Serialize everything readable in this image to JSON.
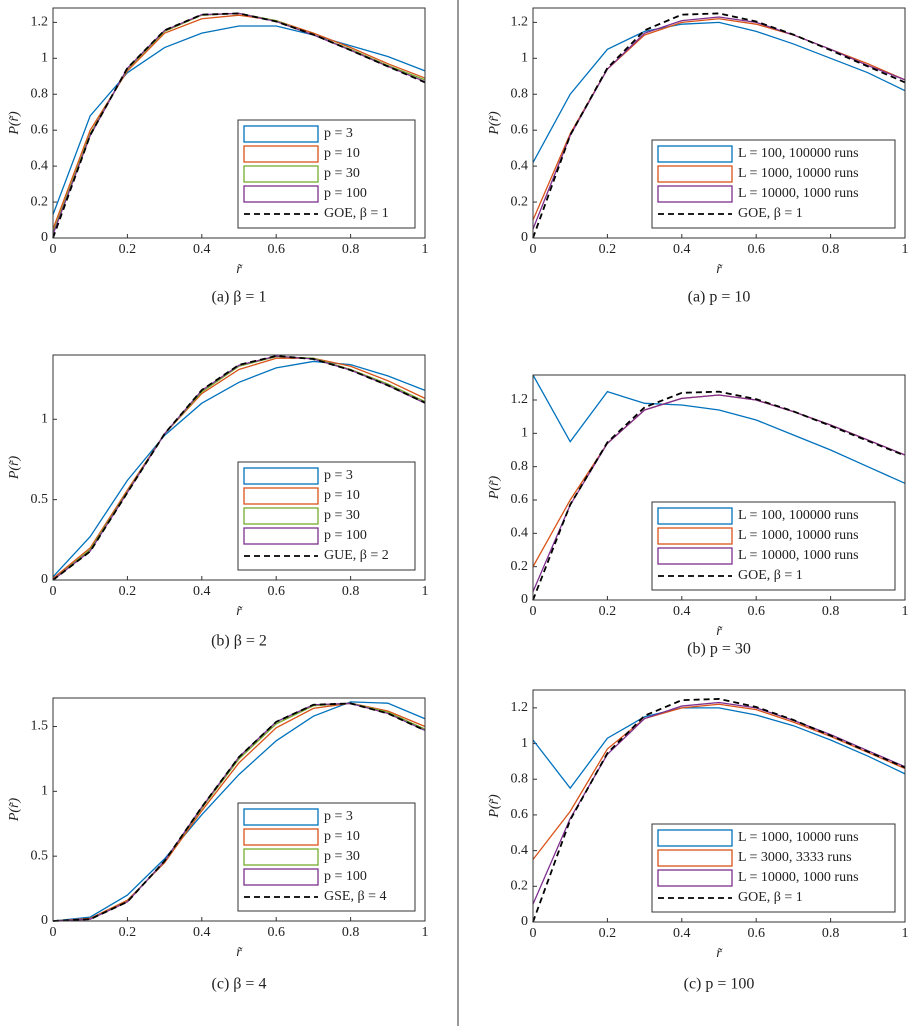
{
  "chart_data": [
    {
      "type": "line",
      "caption": "(a) β = 1",
      "xlabel": "r̃",
      "ylabel": "P(r̃)",
      "legend": "lower right",
      "x": [
        0,
        0.1,
        0.2,
        0.3,
        0.4,
        0.5,
        0.6,
        0.7,
        0.8,
        0.9,
        1
      ],
      "xlim": [
        0,
        1
      ],
      "xticks": [
        0,
        0.2,
        0.4,
        0.6,
        0.8,
        1
      ],
      "ylim": [
        0,
        1.28
      ],
      "yticks": [
        0,
        0.2,
        0.4,
        0.6,
        0.8,
        1,
        1.2
      ],
      "series": [
        {
          "name": "p = 3",
          "color": "#0072bd",
          "values": [
            0.13,
            0.68,
            0.92,
            1.06,
            1.14,
            1.18,
            1.18,
            1.13,
            1.07,
            1.01,
            0.93
          ]
        },
        {
          "name": "p = 10",
          "color": "#d95319",
          "values": [
            0.05,
            0.6,
            0.93,
            1.14,
            1.22,
            1.24,
            1.21,
            1.14,
            1.06,
            0.97,
            0.89
          ]
        },
        {
          "name": "p = 30",
          "color": "#77ac30",
          "values": [
            0.03,
            0.58,
            0.94,
            1.15,
            1.24,
            1.25,
            1.21,
            1.13,
            1.05,
            0.96,
            0.88
          ]
        },
        {
          "name": "p = 100",
          "color": "#7e2f8e",
          "values": [
            0.02,
            0.57,
            0.945,
            1.155,
            1.243,
            1.25,
            1.205,
            1.13,
            1.045,
            0.955,
            0.87
          ]
        },
        {
          "name": "GOE, β = 1",
          "color": "#000000",
          "linestyle": "dashed",
          "values": [
            0,
            0.572,
            0.946,
            1.156,
            1.243,
            1.25,
            1.205,
            1.132,
            1.045,
            0.955,
            0.866
          ]
        }
      ]
    },
    {
      "type": "line",
      "caption": "(b) β = 2",
      "xlabel": "r̃",
      "ylabel": "P(r̃)",
      "legend": "lower right",
      "x": [
        0,
        0.1,
        0.2,
        0.3,
        0.4,
        0.5,
        0.6,
        0.7,
        0.8,
        0.9,
        1
      ],
      "xlim": [
        0,
        1
      ],
      "xticks": [
        0,
        0.2,
        0.4,
        0.6,
        0.8,
        1
      ],
      "ylim": [
        0,
        1.4
      ],
      "yticks": [
        0,
        0.5,
        1
      ],
      "series": [
        {
          "name": "p = 3",
          "color": "#0072bd",
          "values": [
            0.02,
            0.27,
            0.62,
            0.9,
            1.1,
            1.23,
            1.32,
            1.36,
            1.34,
            1.27,
            1.18
          ]
        },
        {
          "name": "p = 10",
          "color": "#d95319",
          "values": [
            0.01,
            0.2,
            0.56,
            0.91,
            1.16,
            1.31,
            1.38,
            1.38,
            1.33,
            1.24,
            1.13
          ]
        },
        {
          "name": "p = 30",
          "color": "#77ac30",
          "values": [
            0,
            0.19,
            0.55,
            0.91,
            1.17,
            1.33,
            1.39,
            1.38,
            1.31,
            1.22,
            1.11
          ]
        },
        {
          "name": "p = 100",
          "color": "#7e2f8e",
          "values": [
            0,
            0.18,
            0.545,
            0.91,
            1.18,
            1.336,
            1.393,
            1.375,
            1.306,
            1.211,
            1.1
          ]
        },
        {
          "name": "GUE, β = 2",
          "color": "#000000",
          "linestyle": "dashed",
          "values": [
            0,
            0.178,
            0.544,
            0.91,
            1.182,
            1.339,
            1.394,
            1.375,
            1.306,
            1.211,
            1.103
          ]
        }
      ]
    },
    {
      "type": "line",
      "caption": "(c) β = 4",
      "xlabel": "r̃",
      "ylabel": "P(r̃)",
      "legend": "lower right",
      "x": [
        0,
        0.1,
        0.2,
        0.3,
        0.4,
        0.5,
        0.6,
        0.7,
        0.8,
        0.9,
        1
      ],
      "xlim": [
        0,
        1
      ],
      "xticks": [
        0,
        0.2,
        0.4,
        0.6,
        0.8,
        1
      ],
      "ylim": [
        0,
        1.72
      ],
      "yticks": [
        0,
        0.5,
        1,
        1.5
      ],
      "series": [
        {
          "name": "p = 3",
          "color": "#0072bd",
          "values": [
            0,
            0.03,
            0.2,
            0.48,
            0.82,
            1.13,
            1.39,
            1.58,
            1.69,
            1.68,
            1.56
          ]
        },
        {
          "name": "p = 10",
          "color": "#d95319",
          "values": [
            0,
            0.02,
            0.16,
            0.45,
            0.85,
            1.22,
            1.49,
            1.64,
            1.68,
            1.62,
            1.5
          ]
        },
        {
          "name": "p = 30",
          "color": "#77ac30",
          "values": [
            0,
            0.015,
            0.15,
            0.46,
            0.87,
            1.25,
            1.52,
            1.66,
            1.68,
            1.61,
            1.48
          ]
        },
        {
          "name": "p = 100",
          "color": "#7e2f8e",
          "values": [
            0,
            0.014,
            0.148,
            0.463,
            0.879,
            1.265,
            1.536,
            1.668,
            1.678,
            1.601,
            1.47
          ]
        },
        {
          "name": "GSE, β = 4",
          "color": "#000000",
          "linestyle": "dashed",
          "values": [
            0,
            0.014,
            0.148,
            0.463,
            0.879,
            1.265,
            1.536,
            1.668,
            1.678,
            1.601,
            1.47
          ]
        }
      ]
    },
    {
      "type": "line",
      "caption": "(a) p = 10",
      "xlabel": "r̃",
      "ylabel": "P(r̃)",
      "legend": "lower right",
      "x": [
        0,
        0.1,
        0.2,
        0.3,
        0.4,
        0.5,
        0.6,
        0.7,
        0.8,
        0.9,
        1
      ],
      "xlim": [
        0,
        1
      ],
      "xticks": [
        0,
        0.2,
        0.4,
        0.6,
        0.8,
        1
      ],
      "ylim": [
        0,
        1.28
      ],
      "yticks": [
        0,
        0.2,
        0.4,
        0.6,
        0.8,
        1,
        1.2
      ],
      "series": [
        {
          "name": "L = 100, 100000 runs",
          "color": "#0072bd",
          "values": [
            0.42,
            0.8,
            1.05,
            1.15,
            1.19,
            1.2,
            1.15,
            1.08,
            1,
            0.92,
            0.82
          ]
        },
        {
          "name": "L = 1000, 10000 runs",
          "color": "#d95319",
          "values": [
            0.1,
            0.58,
            0.94,
            1.13,
            1.2,
            1.22,
            1.19,
            1.13,
            1.05,
            0.97,
            0.88
          ]
        },
        {
          "name": "L = 10000, 1000 runs",
          "color": "#7e2f8e",
          "values": [
            0.05,
            0.57,
            0.94,
            1.14,
            1.21,
            1.23,
            1.2,
            1.13,
            1.05,
            0.96,
            0.88
          ]
        },
        {
          "name": "GOE, β = 1",
          "color": "#000000",
          "linestyle": "dashed",
          "values": [
            0,
            0.572,
            0.946,
            1.156,
            1.243,
            1.25,
            1.205,
            1.132,
            1.045,
            0.955,
            0.866
          ]
        }
      ]
    },
    {
      "type": "line",
      "caption": "(b) p = 30",
      "xlabel": "r̃",
      "ylabel": "P(r̃)",
      "legend": "lower right",
      "x": [
        0,
        0.1,
        0.2,
        0.3,
        0.4,
        0.5,
        0.6,
        0.7,
        0.8,
        0.9,
        1
      ],
      "xlim": [
        0,
        1
      ],
      "xticks": [
        0,
        0.2,
        0.4,
        0.6,
        0.8,
        1
      ],
      "ylim": [
        0,
        1.35
      ],
      "yticks": [
        0,
        0.2,
        0.4,
        0.6,
        0.8,
        1,
        1.2
      ],
      "series": [
        {
          "name": "L = 100, 100000 runs",
          "color": "#0072bd",
          "values": [
            1.35,
            0.95,
            1.25,
            1.18,
            1.17,
            1.14,
            1.08,
            0.99,
            0.9,
            0.8,
            0.7
          ]
        },
        {
          "name": "L = 1000, 10000 runs",
          "color": "#d95319",
          "values": [
            0.2,
            0.6,
            0.94,
            1.14,
            1.21,
            1.23,
            1.2,
            1.13,
            1.05,
            0.96,
            0.87
          ]
        },
        {
          "name": "L = 10000, 1000 runs",
          "color": "#7e2f8e",
          "values": [
            0.05,
            0.57,
            0.94,
            1.14,
            1.21,
            1.23,
            1.2,
            1.13,
            1.05,
            0.96,
            0.87
          ]
        },
        {
          "name": "GOE, β = 1",
          "color": "#000000",
          "linestyle": "dashed",
          "values": [
            0,
            0.572,
            0.946,
            1.156,
            1.243,
            1.25,
            1.205,
            1.132,
            1.045,
            0.955,
            0.866
          ]
        }
      ]
    },
    {
      "type": "line",
      "caption": "(c) p = 100",
      "xlabel": "r̃",
      "ylabel": "P(r̃)",
      "legend": "lower right",
      "x": [
        0,
        0.1,
        0.2,
        0.3,
        0.4,
        0.5,
        0.6,
        0.7,
        0.8,
        0.9,
        1
      ],
      "xlim": [
        0,
        1
      ],
      "xticks": [
        0,
        0.2,
        0.4,
        0.6,
        0.8,
        1
      ],
      "ylim": [
        0,
        1.3
      ],
      "yticks": [
        0,
        0.2,
        0.4,
        0.6,
        0.8,
        1,
        1.2
      ],
      "series": [
        {
          "name": "L = 1000, 10000 runs",
          "color": "#0072bd",
          "values": [
            1.02,
            0.75,
            1.03,
            1.15,
            1.2,
            1.2,
            1.16,
            1.1,
            1.02,
            0.93,
            0.83
          ]
        },
        {
          "name": "L = 3000, 3333 runs",
          "color": "#d95319",
          "values": [
            0.35,
            0.62,
            0.97,
            1.14,
            1.2,
            1.22,
            1.19,
            1.12,
            1.04,
            0.95,
            0.86
          ]
        },
        {
          "name": "L = 10000, 1000 runs",
          "color": "#7e2f8e",
          "values": [
            0.1,
            0.58,
            0.94,
            1.14,
            1.21,
            1.23,
            1.2,
            1.13,
            1.05,
            0.96,
            0.87
          ]
        },
        {
          "name": "GOE, β = 1",
          "color": "#000000",
          "linestyle": "dashed",
          "values": [
            0,
            0.572,
            0.946,
            1.156,
            1.243,
            1.25,
            1.205,
            1.132,
            1.045,
            0.955,
            0.866
          ]
        }
      ]
    }
  ]
}
